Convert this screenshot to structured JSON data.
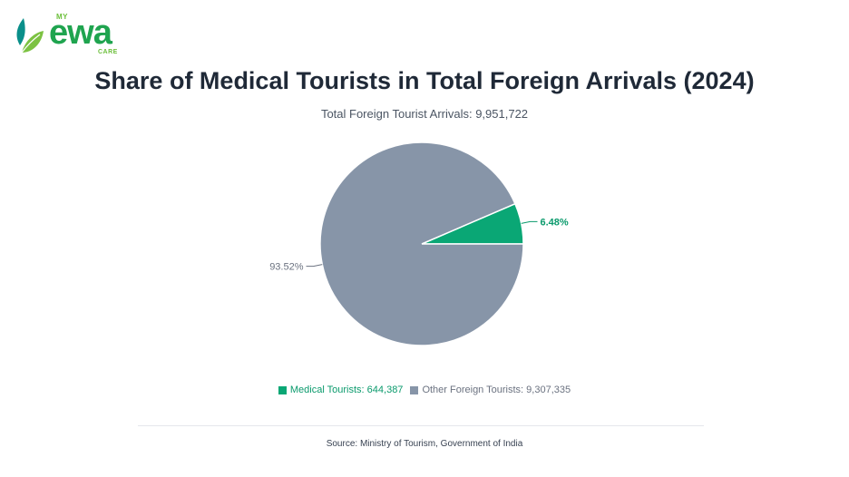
{
  "logo": {
    "prefix": "MY",
    "name": "ewa",
    "suffix": "CARE",
    "icon": "leaf-icon"
  },
  "chart_data": {
    "type": "pie",
    "title": "Share of Medical Tourists in Total Foreign Arrivals (2024)",
    "subtitle": "Total Foreign Tourist Arrivals: 9,951,722",
    "slices": [
      {
        "name": "Medical Tourists",
        "value": 644387,
        "percent_label": "6.48%",
        "legend_label": "Medical Tourists: 644,387",
        "color": "#0aa775",
        "label_color": "#0a9a6c"
      },
      {
        "name": "Other Foreign Tourists",
        "value": 9307335,
        "percent_label": "93.52%",
        "legend_label": "Other Foreign Tourists: 9,307,335",
        "color": "#8795a8",
        "label_color": "#6b7280"
      }
    ],
    "legend_position": "bottom"
  },
  "source": "Source: Ministry of Tourism, Government of India"
}
